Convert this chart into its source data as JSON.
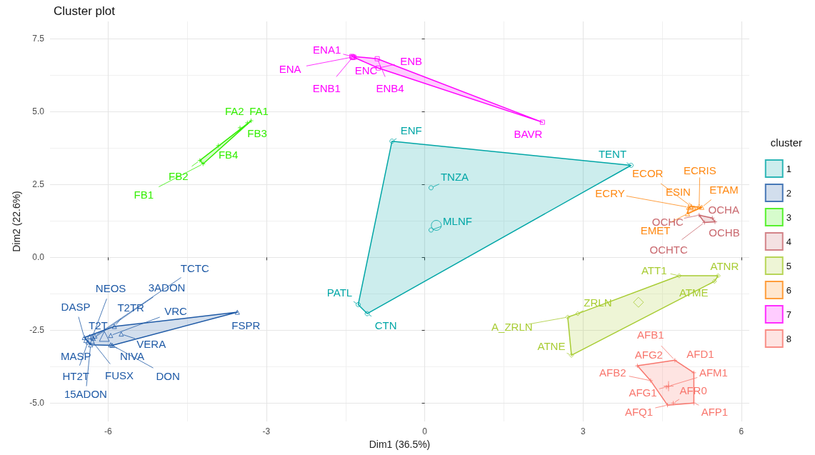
{
  "chart_data": {
    "type": "scatter",
    "title": "Cluster plot",
    "xlabel": "Dim1 (36.5%)",
    "ylabel": "Dim2 (22.6%)",
    "legend_title": "cluster",
    "legend": "right",
    "grid": true,
    "xlim": [
      -7.1,
      6.15
    ],
    "ylim": [
      -5.63,
      8.1
    ],
    "xticks": [
      -6,
      -3,
      0,
      3,
      6
    ],
    "yticks": [
      {
        "value": -5,
        "label": "-5.0"
      },
      {
        "value": -2.5,
        "label": "-2.5"
      },
      {
        "value": 0,
        "label": "0.0"
      },
      {
        "value": 2.5,
        "label": "2.5"
      },
      {
        "value": 5,
        "label": "5.0"
      },
      {
        "value": 7.5,
        "label": "7.5"
      }
    ],
    "series": [
      {
        "name": "1",
        "color": "#00a6a6",
        "marker": "circle",
        "x": [
          -0.62,
          3.91,
          0.12,
          0.12,
          -1.26,
          -1.09
        ],
        "values": [
          3.99,
          3.16,
          2.39,
          0.94,
          -1.62,
          -1.93
        ]
      },
      {
        "type": "area",
        "color": "#00a6a6",
        "x": [
          -0.62,
          3.91,
          -1.09,
          -1.26
        ],
        "values": [
          3.99,
          3.16,
          -1.93,
          -1.62
        ]
      },
      {
        "type": "scatter",
        "color": "#00a6a6",
        "marker": "circle",
        "x": [
          0.22
        ],
        "values": [
          1.1
        ]
      },
      {
        "name": "2",
        "color": "#1f5aa6",
        "marker": "triangle",
        "x": [
          -6.45,
          -6.35,
          -6.3,
          -6.28,
          -6.25,
          -6.42,
          -6.38,
          -6.33,
          -6.3,
          -5.92,
          -5.95,
          -5.75,
          -5.95,
          -5.88,
          -3.55
        ],
        "values": [
          -2.75,
          -2.72,
          -2.74,
          -2.78,
          -2.7,
          -2.85,
          -2.9,
          -3.0,
          -2.88,
          -3.02,
          -3.0,
          -2.63,
          -2.68,
          -2.37,
          -1.88
        ]
      },
      {
        "type": "area",
        "color": "#1f5aa6",
        "x": [
          -6.45,
          -5.88,
          -3.55,
          -5.92,
          -6.33
        ],
        "values": [
          -2.75,
          -2.37,
          -1.88,
          -3.02,
          -3.0
        ]
      },
      {
        "type": "scatter",
        "color": "#1f5aa6",
        "marker": "triangle",
        "x": [
          -6.07
        ],
        "values": [
          -2.71
        ]
      },
      {
        "name": "3",
        "color": "#33ee00",
        "marker": "cross",
        "x": [
          -3.29,
          -3.36,
          -3.5,
          -3.91,
          -4.26,
          -4.2
        ],
        "values": [
          4.69,
          4.62,
          4.45,
          3.84,
          3.33,
          3.21
        ]
      },
      {
        "type": "area",
        "color": "#33ee00",
        "x": [
          -3.29,
          -4.2,
          -4.26
        ],
        "values": [
          4.69,
          3.21,
          3.33
        ]
      },
      {
        "name": "4",
        "color": "#c9686e",
        "marker": "cross",
        "x": [
          5.2,
          5.45,
          5.5,
          5.3
        ],
        "values": [
          1.45,
          1.35,
          1.22,
          1.2
        ]
      },
      {
        "type": "area",
        "color": "#c9686e",
        "x": [
          5.2,
          5.45,
          5.5,
          5.3
        ],
        "values": [
          1.45,
          1.35,
          1.22,
          1.2
        ]
      },
      {
        "name": "5",
        "color": "#a8cc33",
        "marker": "diamond",
        "x": [
          4.82,
          5.56,
          5.49,
          2.9,
          2.71,
          2.78
        ],
        "values": [
          -0.63,
          -0.63,
          -0.82,
          -1.93,
          -2.05,
          -3.36
        ]
      },
      {
        "type": "area",
        "color": "#a8cc33",
        "x": [
          4.82,
          5.56,
          5.49,
          2.78,
          2.71,
          2.9
        ],
        "values": [
          -0.63,
          -0.63,
          -0.82,
          -3.36,
          -2.05,
          -1.93
        ]
      },
      {
        "type": "scatter",
        "color": "#a8cc33",
        "marker": "diamond",
        "x": [
          4.05
        ],
        "values": [
          -1.54
        ]
      },
      {
        "name": "6",
        "color": "#ff8811",
        "marker": "triangle",
        "x": [
          5.05,
          5.2,
          5.1,
          5.25,
          5.0,
          4.98
        ],
        "values": [
          1.75,
          1.75,
          1.7,
          1.72,
          1.72,
          1.5
        ]
      },
      {
        "type": "area",
        "color": "#ff8811",
        "x": [
          5.05,
          5.25,
          4.98,
          5.0
        ],
        "values": [
          1.75,
          1.72,
          1.5,
          1.72
        ]
      },
      {
        "name": "7",
        "color": "#ff00ff",
        "marker": "square",
        "x": [
          -1.38,
          -1.36,
          -1.34,
          -1.37,
          -0.88,
          -0.9,
          2.23
        ],
        "values": [
          6.9,
          6.88,
          6.87,
          6.86,
          6.5,
          6.82,
          4.64
        ]
      },
      {
        "type": "area",
        "color": "#ff00ff",
        "x": [
          -1.38,
          -0.9,
          2.23,
          -0.88
        ],
        "values": [
          6.9,
          6.82,
          4.64,
          6.5
        ]
      },
      {
        "name": "8",
        "color": "#f8766d",
        "marker": "cross",
        "x": [
          4.03,
          4.74,
          5.1,
          5.1,
          4.6,
          4.71,
          4.28,
          4.62,
          4.58
        ],
        "values": [
          -3.72,
          -3.53,
          -3.96,
          -5.0,
          -5.07,
          -5.0,
          -4.23,
          -4.42,
          -4.45
        ]
      },
      {
        "type": "area",
        "color": "#f8766d",
        "x": [
          4.03,
          4.74,
          5.1,
          5.1,
          4.6,
          4.28
        ],
        "values": [
          -3.72,
          -3.53,
          -3.96,
          -5.0,
          -5.07,
          -4.23
        ]
      },
      {
        "type": "scatter",
        "color": "#f8766d",
        "marker": "cross",
        "x": [
          4.62
        ],
        "values": [
          -4.42
        ]
      }
    ],
    "annotations": [
      {
        "text": "ENF",
        "x": -0.62,
        "y": 3.99
      },
      {
        "text": "TENT",
        "x": 3.91,
        "y": 3.16
      },
      {
        "text": "TNZA",
        "x": 0.12,
        "y": 2.39
      },
      {
        "text": "MLNF",
        "x": 0.12,
        "y": 0.94
      },
      {
        "text": "PATL",
        "x": -1.26,
        "y": -1.62
      },
      {
        "text": "CTN",
        "x": -1.09,
        "y": -1.93
      },
      {
        "text": "TCTC",
        "x": -6.25,
        "y": -2.7
      },
      {
        "text": "NEOS",
        "x": -6.3,
        "y": -2.74
      },
      {
        "text": "3ADON",
        "x": -6.28,
        "y": -2.78
      },
      {
        "text": "DASP",
        "x": -6.45,
        "y": -2.75
      },
      {
        "text": "T2TR",
        "x": -5.88,
        "y": -2.37
      },
      {
        "text": "VRC",
        "x": -5.95,
        "y": -2.68
      },
      {
        "text": "T2T",
        "x": -6.35,
        "y": -2.72
      },
      {
        "text": "FSPR",
        "x": -3.55,
        "y": -1.88
      },
      {
        "text": "VERA",
        "x": -5.75,
        "y": -2.63
      },
      {
        "text": "MASP",
        "x": -6.42,
        "y": -2.85
      },
      {
        "text": "NIVA",
        "x": -5.95,
        "y": -3.0
      },
      {
        "text": "HT2T",
        "x": -6.38,
        "y": -2.9
      },
      {
        "text": "FUSX",
        "x": -6.3,
        "y": -2.88
      },
      {
        "text": "DON",
        "x": -5.92,
        "y": -3.02
      },
      {
        "text": "15ADON",
        "x": -6.33,
        "y": -3.0
      },
      {
        "text": "FA2",
        "x": -3.36,
        "y": 4.62
      },
      {
        "text": "FA1",
        "x": -3.29,
        "y": 4.69
      },
      {
        "text": "FB3",
        "x": -3.5,
        "y": 4.45
      },
      {
        "text": "FB4",
        "x": -3.91,
        "y": 3.84
      },
      {
        "text": "FB2",
        "x": -4.26,
        "y": 3.33
      },
      {
        "text": "FB1",
        "x": -4.2,
        "y": 3.21
      },
      {
        "text": "OCHC",
        "x": 5.2,
        "y": 1.45
      },
      {
        "text": "OCHA",
        "x": 5.45,
        "y": 1.35
      },
      {
        "text": "OCHB",
        "x": 5.5,
        "y": 1.22
      },
      {
        "text": "OCHTC",
        "x": 5.3,
        "y": 1.2
      },
      {
        "text": "ECOR",
        "x": 5.05,
        "y": 1.75
      },
      {
        "text": "ECRIS",
        "x": 5.2,
        "y": 1.75
      },
      {
        "text": "ECRY",
        "x": 5.0,
        "y": 1.72
      },
      {
        "text": "ESIN",
        "x": 5.1,
        "y": 1.7
      },
      {
        "text": "ETAM",
        "x": 5.25,
        "y": 1.72
      },
      {
        "text": "EMET",
        "x": 4.98,
        "y": 1.5
      },
      {
        "text": "ENA1",
        "x": -1.38,
        "y": 6.9
      },
      {
        "text": "ENA",
        "x": -1.36,
        "y": 6.88
      },
      {
        "text": "ENC",
        "x": -1.34,
        "y": 6.87
      },
      {
        "text": "ENB",
        "x": -0.88,
        "y": 6.5
      },
      {
        "text": "ENB1",
        "x": -1.37,
        "y": 6.86
      },
      {
        "text": "ENB4",
        "x": -0.9,
        "y": 6.82
      },
      {
        "text": "BAVR",
        "x": 2.23,
        "y": 4.64
      },
      {
        "text": "ATT1",
        "x": 4.82,
        "y": -0.63
      },
      {
        "text": "ATNR",
        "x": 5.56,
        "y": -0.63
      },
      {
        "text": "ATME",
        "x": 5.49,
        "y": -0.82
      },
      {
        "text": "ZRLN",
        "x": 2.9,
        "y": -1.93
      },
      {
        "text": "A_ZRLN",
        "x": 2.71,
        "y": -2.05
      },
      {
        "text": "ATNE",
        "x": 2.78,
        "y": -3.36
      },
      {
        "text": "AFB1",
        "x": 4.74,
        "y": -3.53
      },
      {
        "text": "AFG2",
        "x": 4.03,
        "y": -3.72
      },
      {
        "text": "AFD1",
        "x": 5.1,
        "y": -3.96
      },
      {
        "text": "AFB2",
        "x": 4.28,
        "y": -4.23
      },
      {
        "text": "AFM1",
        "x": 4.62,
        "y": -4.42
      },
      {
        "text": "AFG1",
        "x": 4.58,
        "y": -4.45
      },
      {
        "text": "AFR0",
        "x": 4.71,
        "y": -5.0
      },
      {
        "text": "AFQ1",
        "x": 4.6,
        "y": -5.07
      },
      {
        "text": "AFP1",
        "x": 5.1,
        "y": -5.0
      }
    ]
  }
}
